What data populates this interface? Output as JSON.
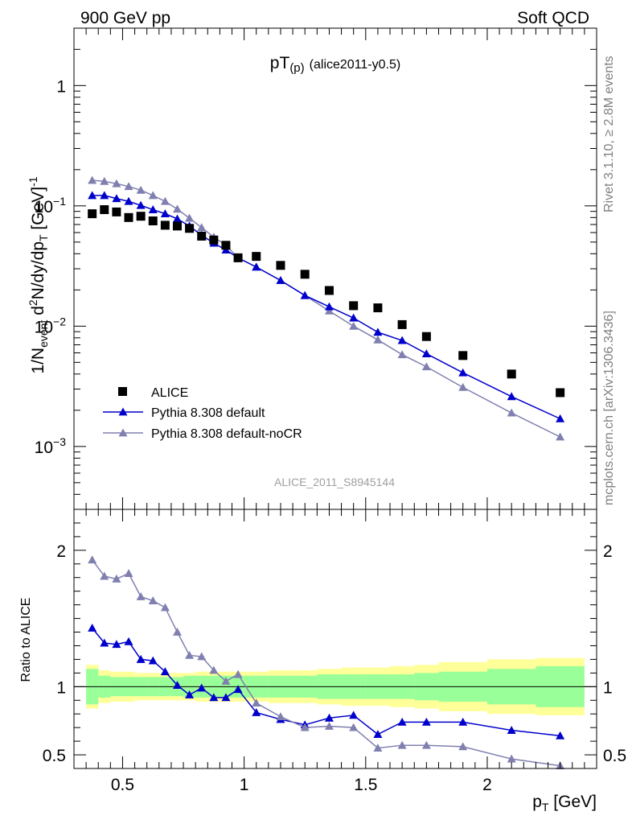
{
  "header": {
    "left": "900 GeV pp",
    "right": "Soft QCD"
  },
  "side_labels": {
    "rivet": "Rivet 3.1.10, ≥ 2.8M events",
    "source": "mcplots.cern.ch [arXiv:1306.3436]"
  },
  "colors": {
    "data": "#000000",
    "pythia_default": "#0000cc",
    "pythia_nocr": "#8080b0",
    "band_stat": "#99ff99",
    "band_total": "#ffff99"
  },
  "chart_data": [
    {
      "type": "scatter",
      "panel": "main",
      "title": "pT(p) (alice2011-y0.5)",
      "title_main": "pT",
      "title_sub": "(p)",
      "title_extra": "(alice2011-y0.5)",
      "watermark": "ALICE_2011_S8945144",
      "ylabel": "1/N_event d²N/dy/dp_T [GeV]⁻¹",
      "ylabel_parts": {
        "a": "1/N",
        "a_sub": "event",
        "b": " d",
        "b_sup": "2",
        "c": "N/dy/dp",
        "c_sub": "T",
        "d": " [GeV]",
        "d_sup": "-1"
      },
      "yscale": "log",
      "xlim": [
        0.3,
        2.45
      ],
      "ylim": [
        0.0003,
        3.0
      ],
      "yticks": [
        {
          "value": 1,
          "mant": "1",
          "exp": ""
        },
        {
          "value": 0.1,
          "mant": "10",
          "exp": "−1"
        },
        {
          "value": 0.01,
          "mant": "10",
          "exp": "−2"
        },
        {
          "value": 0.001,
          "mant": "10",
          "exp": "−3"
        }
      ],
      "legend_position": "lower-left",
      "x": [
        0.375,
        0.425,
        0.475,
        0.525,
        0.575,
        0.625,
        0.675,
        0.725,
        0.775,
        0.825,
        0.875,
        0.925,
        0.975,
        1.05,
        1.15,
        1.25,
        1.35,
        1.45,
        1.55,
        1.65,
        1.75,
        1.9,
        2.1,
        2.3
      ],
      "series": [
        {
          "name": "ALICE",
          "marker": "square",
          "values": [
            0.086,
            0.093,
            0.089,
            0.08,
            0.082,
            0.075,
            0.069,
            0.068,
            0.065,
            0.056,
            0.052,
            0.047,
            0.037,
            0.038,
            0.032,
            0.027,
            0.0198,
            0.0148,
            0.0142,
            0.0103,
            0.0082,
            0.0057,
            0.004,
            0.0028
          ]
        },
        {
          "name": "Pythia 8.308 default",
          "marker": "triangle",
          "values": [
            0.122,
            0.122,
            0.115,
            0.109,
            0.101,
            0.093,
            0.086,
            0.078,
            0.068,
            0.057,
            0.049,
            0.043,
            0.037,
            0.031,
            0.024,
            0.018,
            0.0145,
            0.0117,
            0.0089,
            0.0076,
            0.0059,
            0.0041,
            0.0026,
            0.0017
          ]
        },
        {
          "name": "Pythia 8.308 default-noCR",
          "marker": "triangle",
          "values": [
            0.163,
            0.16,
            0.153,
            0.145,
            0.135,
            0.122,
            0.109,
            0.094,
            0.079,
            0.066,
            0.055,
            0.047,
            0.037,
            0.031,
            0.024,
            0.018,
            0.0134,
            0.01,
            0.0077,
            0.0058,
            0.0046,
            0.0031,
            0.0019,
            0.0012
          ]
        }
      ]
    },
    {
      "type": "line",
      "panel": "ratio",
      "ylabel": "Ratio to ALICE",
      "xlabel_main": "p",
      "xlabel_sub": "T",
      "xlabel_unit": " [GeV]",
      "xlim": [
        0.3,
        2.45
      ],
      "ylim": [
        0.4,
        2.3
      ],
      "xticks": [
        {
          "value": 0.5,
          "label": "0.5"
        },
        {
          "value": 1.0,
          "label": "1"
        },
        {
          "value": 1.5,
          "label": "1.5"
        },
        {
          "value": 2.0,
          "label": "2"
        }
      ],
      "yticks": [
        {
          "value": 0.5,
          "label": "0.5"
        },
        {
          "value": 1.0,
          "label": "1"
        },
        {
          "value": 2.0,
          "label": "2"
        }
      ],
      "reference": 1.0,
      "bands": {
        "edges": [
          0.35,
          0.4,
          0.45,
          0.5,
          0.55,
          0.6,
          0.65,
          0.7,
          0.75,
          0.8,
          0.85,
          0.9,
          0.95,
          1.0,
          1.1,
          1.2,
          1.3,
          1.4,
          1.5,
          1.6,
          1.7,
          1.8,
          2.0,
          2.2,
          2.4
        ],
        "stat": [
          0.13,
          0.08,
          0.07,
          0.07,
          0.07,
          0.07,
          0.07,
          0.07,
          0.08,
          0.08,
          0.08,
          0.08,
          0.08,
          0.08,
          0.08,
          0.08,
          0.09,
          0.09,
          0.09,
          0.09,
          0.1,
          0.11,
          0.13,
          0.15
        ],
        "total": [
          0.16,
          0.12,
          0.11,
          0.11,
          0.1,
          0.1,
          0.1,
          0.1,
          0.1,
          0.11,
          0.11,
          0.11,
          0.11,
          0.11,
          0.12,
          0.12,
          0.13,
          0.14,
          0.14,
          0.15,
          0.16,
          0.18,
          0.2,
          0.21
        ]
      },
      "x": [
        0.375,
        0.425,
        0.475,
        0.525,
        0.575,
        0.625,
        0.675,
        0.725,
        0.775,
        0.825,
        0.875,
        0.925,
        0.975,
        1.05,
        1.15,
        1.25,
        1.35,
        1.45,
        1.55,
        1.65,
        1.75,
        1.9,
        2.1,
        2.3
      ],
      "series": [
        {
          "name": "Pythia 8.308 default",
          "values": [
            1.43,
            1.32,
            1.31,
            1.33,
            1.2,
            1.19,
            1.11,
            1.01,
            0.94,
            0.99,
            0.92,
            0.92,
            0.98,
            0.81,
            0.76,
            0.72,
            0.77,
            0.79,
            0.65,
            0.74,
            0.74,
            0.74,
            0.68,
            0.64
          ]
        },
        {
          "name": "Pythia 8.308 default-noCR",
          "values": [
            1.93,
            1.81,
            1.79,
            1.83,
            1.66,
            1.63,
            1.58,
            1.4,
            1.23,
            1.22,
            1.12,
            1.04,
            1.09,
            0.88,
            0.78,
            0.7,
            0.71,
            0.7,
            0.55,
            0.57,
            0.57,
            0.56,
            0.47,
            0.42
          ]
        }
      ]
    }
  ]
}
